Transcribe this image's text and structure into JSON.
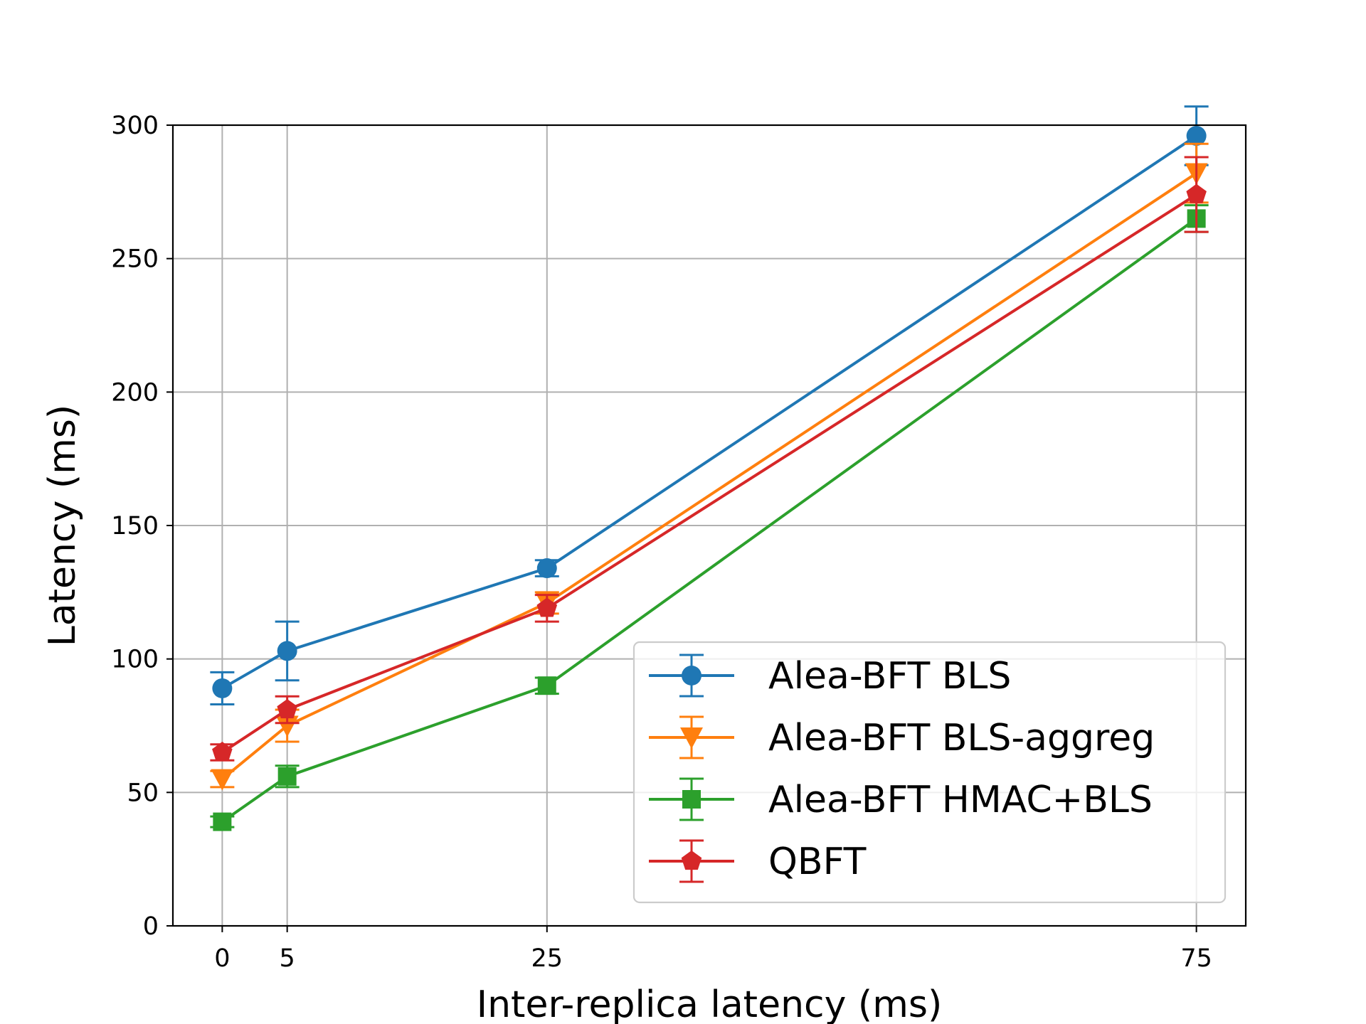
{
  "chart_data": {
    "type": "line",
    "title": "",
    "xlabel": "Inter-replica latency (ms)",
    "ylabel": "Latency (ms)",
    "x": [
      0,
      5,
      25,
      75
    ],
    "xticks": [
      0,
      5,
      25,
      75
    ],
    "xlim": [
      -3.8,
      78.8
    ],
    "ylim": [
      0,
      300
    ],
    "yticks": [
      0,
      50,
      100,
      150,
      200,
      250,
      300
    ],
    "grid": true,
    "legend_position": "lower-right",
    "series": [
      {
        "name": "Alea-BFT BLS",
        "color": "#1f77b4",
        "marker": "circle",
        "values": [
          89,
          103,
          134,
          296
        ],
        "error": [
          6,
          11,
          3,
          11
        ]
      },
      {
        "name": "Alea-BFT BLS-aggreg",
        "color": "#ff7f0e",
        "marker": "triangle-down",
        "values": [
          55,
          75,
          121,
          282
        ],
        "error": [
          3,
          6,
          4,
          11
        ]
      },
      {
        "name": "Alea-BFT HMAC+BLS",
        "color": "#2ca02c",
        "marker": "square",
        "values": [
          39,
          56,
          90,
          265
        ],
        "error": [
          2,
          4,
          3,
          5
        ]
      },
      {
        "name": "QBFT",
        "color": "#d62728",
        "marker": "pentagon",
        "values": [
          65,
          81,
          119,
          274
        ],
        "error": [
          3,
          5,
          5,
          14
        ]
      }
    ]
  }
}
